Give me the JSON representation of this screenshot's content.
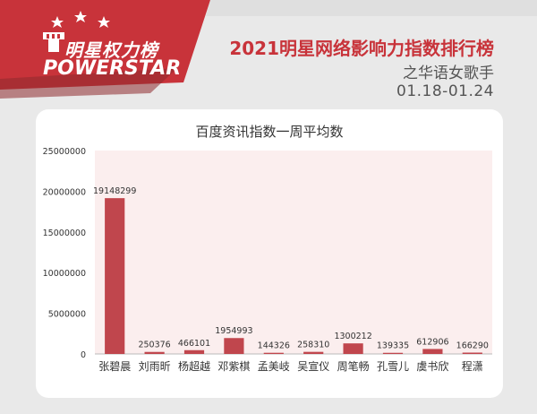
{
  "brand": {
    "name_cn": "明星权力榜",
    "name_en": "POWERSTAR"
  },
  "header": {
    "title": "2021明星网络影响力指数排行榜",
    "subtitle": "之华语女歌手",
    "date_range": "01.18-01.24"
  },
  "colors": {
    "brand_red": "#c8333a",
    "bar": "#c0464d",
    "plot_bg": "#fbeeee"
  },
  "chart_data": {
    "type": "bar",
    "title": "百度资讯指数一周平均数",
    "categories": [
      "张碧晨",
      "刘雨昕",
      "杨超越",
      "邓紫棋",
      "孟美岐",
      "吴宣仪",
      "周笔畅",
      "孔雪儿",
      "虞书欣",
      "程潇"
    ],
    "values": [
      19148299,
      250376,
      466101,
      1954993,
      144326,
      258310,
      1300212,
      139335,
      612906,
      166290
    ],
    "yticks": [
      "0",
      "5000000",
      "10000000",
      "15000000",
      "20000000",
      "25000000"
    ],
    "ylim": [
      0,
      25000000
    ],
    "grid": false,
    "legend": "none"
  }
}
